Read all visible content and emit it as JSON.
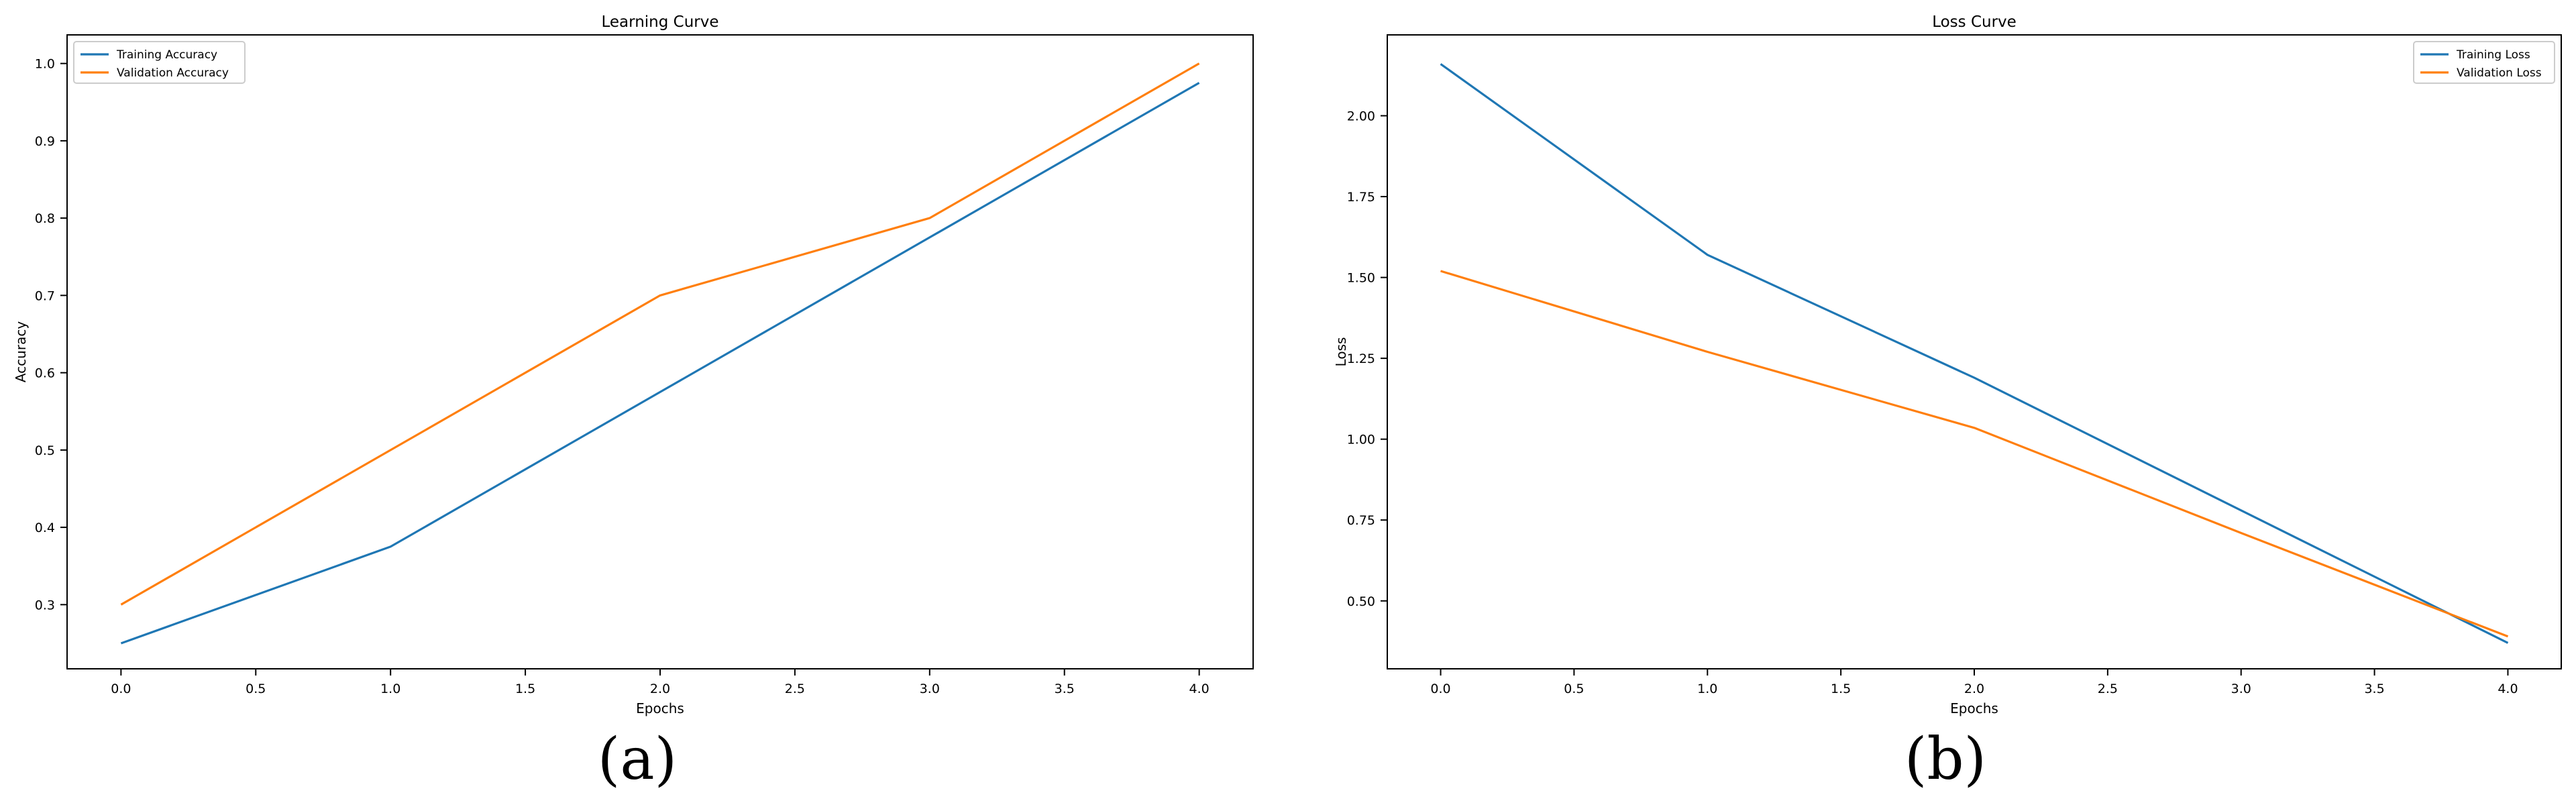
{
  "panels": [
    {
      "label": "(a)"
    },
    {
      "label": "(b)"
    }
  ],
  "chart_data": [
    {
      "type": "line",
      "title": "Learning Curve",
      "xlabel": "Epochs",
      "ylabel": "Accuracy",
      "x": [
        0,
        1,
        2,
        3,
        4
      ],
      "xlim": [
        -0.2,
        4.2
      ],
      "ylim": [
        0.217,
        1.037
      ],
      "xticks": [
        0.0,
        0.5,
        1.0,
        1.5,
        2.0,
        2.5,
        3.0,
        3.5,
        4.0
      ],
      "xtick_labels": [
        "0.0",
        "0.5",
        "1.0",
        "1.5",
        "2.0",
        "2.5",
        "3.0",
        "3.5",
        "4.0"
      ],
      "yticks": [
        0.3,
        0.4,
        0.5,
        0.6,
        0.7,
        0.8,
        0.9,
        1.0
      ],
      "ytick_labels": [
        "0.3",
        "0.4",
        "0.5",
        "0.6",
        "0.7",
        "0.8",
        "0.9",
        "1.0"
      ],
      "grid": false,
      "legend": "top-left",
      "series": [
        {
          "name": "Training Accuracy",
          "color": "#1f77b4",
          "values": [
            0.25,
            0.375,
            0.575,
            0.775,
            0.975
          ]
        },
        {
          "name": "Validation Accuracy",
          "color": "#ff7f0e",
          "values": [
            0.3,
            0.5,
            0.7,
            0.8,
            1.0
          ]
        }
      ]
    },
    {
      "type": "line",
      "title": "Loss Curve",
      "xlabel": "Epochs",
      "ylabel": "Loss",
      "x": [
        0,
        1,
        2,
        3,
        4
      ],
      "xlim": [
        -0.2,
        4.2
      ],
      "ylim": [
        0.29,
        2.25
      ],
      "xticks": [
        0.0,
        0.5,
        1.0,
        1.5,
        2.0,
        2.5,
        3.0,
        3.5,
        4.0
      ],
      "xtick_labels": [
        "0.0",
        "0.5",
        "1.0",
        "1.5",
        "2.0",
        "2.5",
        "3.0",
        "3.5",
        "4.0"
      ],
      "yticks": [
        0.5,
        0.75,
        1.0,
        1.25,
        1.5,
        1.75,
        2.0
      ],
      "ytick_labels": [
        "0.50",
        "0.75",
        "1.00",
        "1.25",
        "1.50",
        "1.75",
        "2.00"
      ],
      "grid": false,
      "legend": "top-right",
      "series": [
        {
          "name": "Training Loss",
          "color": "#1f77b4",
          "values": [
            2.16,
            1.57,
            1.19,
            0.78,
            0.37
          ]
        },
        {
          "name": "Validation Loss",
          "color": "#ff7f0e",
          "values": [
            1.52,
            1.27,
            1.035,
            0.71,
            0.39
          ]
        }
      ]
    }
  ]
}
